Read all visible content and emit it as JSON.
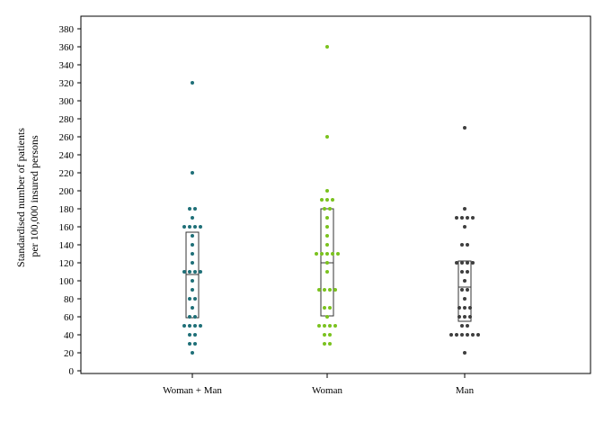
{
  "chart_data": {
    "type": "scatter",
    "subtype": "dot-strip plot with box (median and interquartile range)",
    "title": "",
    "xlabel": "",
    "ylabel_lines": [
      "Standardised number of patients",
      "per 100,000 insured persons"
    ],
    "ylim": [
      0,
      390
    ],
    "yticks": [
      0,
      20,
      40,
      60,
      80,
      100,
      120,
      140,
      160,
      180,
      200,
      220,
      240,
      260,
      280,
      300,
      320,
      340,
      360,
      380
    ],
    "grid": false,
    "categories": [
      "Woman + Man",
      "Woman",
      "Man"
    ],
    "series": [
      {
        "category": "Woman + Man",
        "color": "#1f6f78",
        "box": {
          "q1": 59,
          "median": 107,
          "q3": 154
        },
        "points": [
          20,
          30,
          30,
          40,
          40,
          50,
          50,
          50,
          50,
          60,
          60,
          70,
          80,
          80,
          90,
          100,
          110,
          110,
          110,
          110,
          120,
          130,
          140,
          150,
          160,
          160,
          160,
          160,
          170,
          180,
          180,
          220,
          320
        ]
      },
      {
        "category": "Woman",
        "color": "#7ac21e",
        "box": {
          "q1": 61,
          "median": 120,
          "q3": 180
        },
        "points": [
          30,
          30,
          40,
          40,
          50,
          50,
          50,
          50,
          60,
          70,
          70,
          90,
          90,
          90,
          90,
          110,
          120,
          130,
          130,
          130,
          130,
          130,
          140,
          150,
          160,
          170,
          180,
          180,
          190,
          190,
          190,
          200,
          260,
          360
        ]
      },
      {
        "category": "Man",
        "color": "#3e3e3e",
        "box": {
          "q1": 55,
          "median": 93,
          "q3": 122
        },
        "points": [
          20,
          40,
          40,
          40,
          40,
          40,
          40,
          50,
          50,
          60,
          60,
          60,
          70,
          70,
          70,
          80,
          90,
          90,
          100,
          110,
          110,
          120,
          120,
          120,
          120,
          140,
          140,
          160,
          170,
          170,
          170,
          170,
          180,
          270
        ]
      }
    ]
  }
}
